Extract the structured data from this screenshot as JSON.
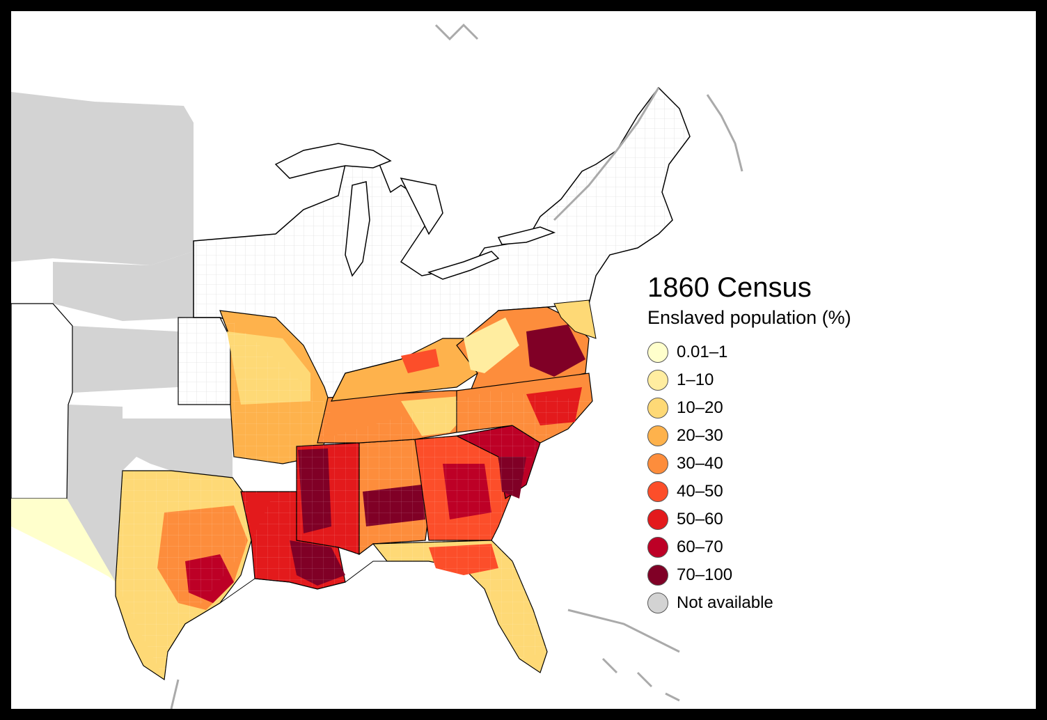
{
  "map": {
    "title": "1860 Census",
    "subtitle": "Enslaved population (%)",
    "legend": [
      {
        "label": "0.01–1",
        "color": "#ffffcc"
      },
      {
        "label": "1–10",
        "color": "#ffeda0"
      },
      {
        "label": "10–20",
        "color": "#fed976"
      },
      {
        "label": "20–30",
        "color": "#feb24c"
      },
      {
        "label": "30–40",
        "color": "#fd8d3c"
      },
      {
        "label": "40–50",
        "color": "#fc4e2a"
      },
      {
        "label": "50–60",
        "color": "#e31a1c"
      },
      {
        "label": "60–70",
        "color": "#bd0026"
      },
      {
        "label": "70–100",
        "color": "#800026"
      },
      {
        "label": "Not available",
        "color": "#d3d3d3"
      }
    ],
    "colors": {
      "frame": "#000000",
      "background": "#ffffff",
      "not_available": "#d3d3d3",
      "border": "#000000",
      "water_outline": "#aaaaaa"
    }
  }
}
